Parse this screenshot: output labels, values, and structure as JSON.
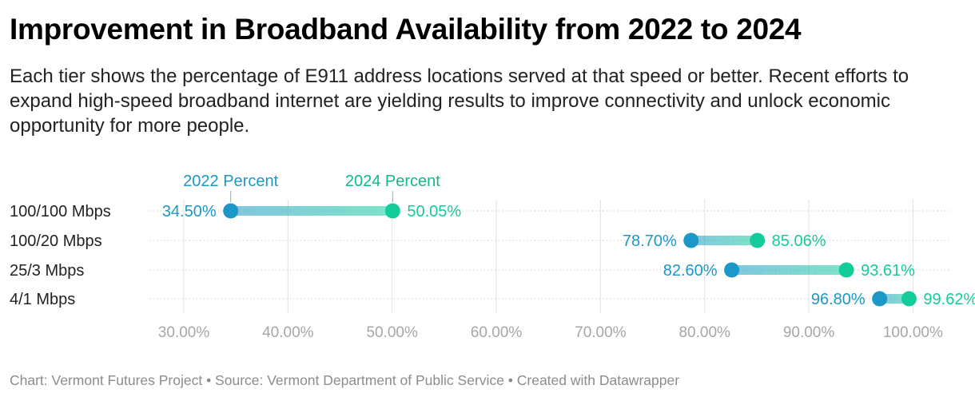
{
  "header": {
    "title": "Improvement in Broadband Availability from 2022 to 2024",
    "subtitle": "Each tier shows the percentage of E911 address locations served at that speed or better. Recent efforts to expand high-speed broadband internet are yielding results to improve connectivity and unlock economic opportunity for more people."
  },
  "footer": {
    "text": "Chart: Vermont Futures Project • Source: Vermont Department of Public Service • Created with Datawrapper"
  },
  "chart_data": {
    "type": "range-dot",
    "title": "Improvement in Broadband Availability from 2022 to 2024",
    "categories": [
      "100/100 Mbps",
      "100/20 Mbps",
      "25/3 Mbps",
      "4/1 Mbps"
    ],
    "series": [
      {
        "name": "2022 Percent",
        "values": [
          34.5,
          78.7,
          82.6,
          96.8
        ],
        "labels": [
          "34.50%",
          "78.70%",
          "82.60%",
          "96.80%"
        ],
        "color": "#1b98c8"
      },
      {
        "name": "2024 Percent",
        "values": [
          50.05,
          85.06,
          93.61,
          99.62
        ],
        "labels": [
          "50.05%",
          "85.06%",
          "93.61%",
          "99.62%"
        ],
        "color": "#14cc9a"
      }
    ],
    "x_ticks": [
      30,
      40,
      50,
      60,
      70,
      80,
      90,
      100
    ],
    "x_tick_labels": [
      "30.00%",
      "40.00%",
      "50.00%",
      "60.00%",
      "70.00%",
      "80.00%",
      "90.00%",
      "100.00%"
    ],
    "xlim": [
      26.7,
      103.5
    ],
    "grid": true,
    "legend": "inline above first row"
  }
}
